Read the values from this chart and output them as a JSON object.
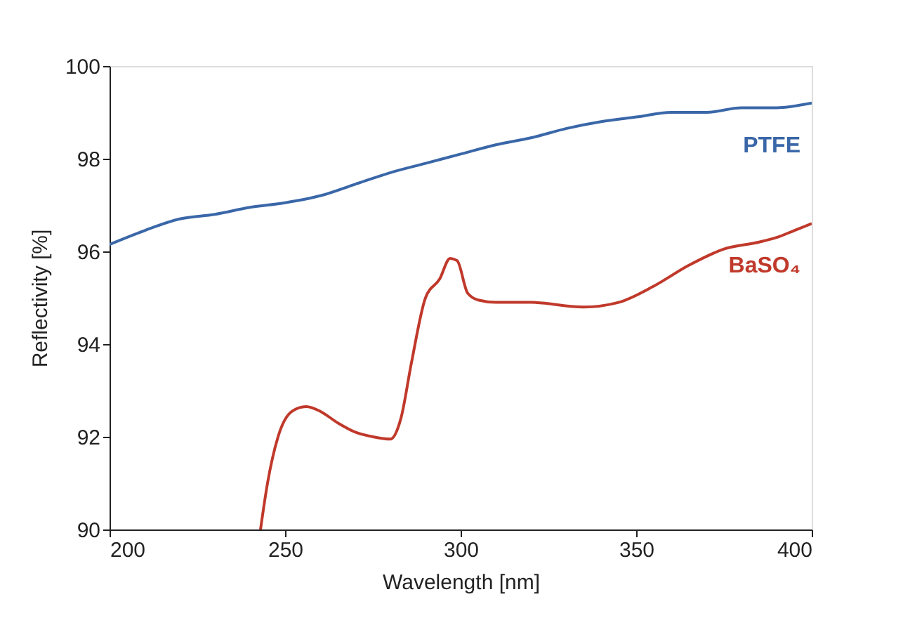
{
  "chart_data": {
    "type": "line",
    "xlabel": "Wavelength [nm]",
    "ylabel": "Reflectivity [%]",
    "xlim": [
      200,
      400
    ],
    "xticks": [
      200,
      250,
      300,
      350,
      400
    ],
    "ylim": [
      90,
      100
    ],
    "yticks": [
      90,
      92,
      94,
      96,
      98,
      100
    ],
    "grid": false,
    "legend": false,
    "marker": "none",
    "line_style": "solid",
    "series": [
      {
        "name": "PTFE",
        "color": "#3a67a8",
        "x": [
          200,
          210,
          220,
          230,
          240,
          250,
          260,
          270,
          280,
          290,
          300,
          310,
          320,
          330,
          340,
          350,
          360,
          370,
          380,
          390,
          400
        ],
        "values": [
          96.15,
          96.45,
          96.7,
          96.8,
          96.95,
          97.05,
          97.2,
          97.45,
          97.7,
          97.9,
          98.1,
          98.3,
          98.45,
          98.65,
          98.8,
          98.9,
          99.0,
          99.0,
          99.1,
          99.1,
          99.2
        ]
      },
      {
        "name": "BaSO₄",
        "color": "#c0392b",
        "x": [
          243,
          245,
          248,
          252,
          256,
          260,
          265,
          270,
          275,
          280,
          283,
          286,
          290,
          294,
          297,
          299,
          302,
          305,
          310,
          320,
          335,
          345,
          355,
          365,
          375,
          385,
          390,
          395,
          400
        ],
        "values": [
          90.0,
          91.0,
          92.0,
          92.55,
          92.65,
          92.55,
          92.3,
          92.1,
          92.0,
          91.95,
          92.4,
          93.6,
          95.0,
          95.4,
          95.85,
          95.8,
          95.1,
          94.95,
          94.9,
          94.9,
          94.8,
          94.9,
          95.25,
          95.7,
          96.05,
          96.2,
          96.3,
          96.45,
          96.6
        ]
      }
    ]
  }
}
